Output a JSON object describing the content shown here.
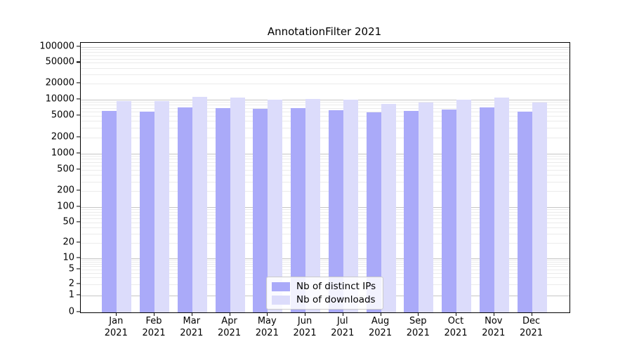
{
  "title": "AnnotationFilter 2021",
  "chart_data": {
    "type": "bar",
    "title": "AnnotationFilter 2021",
    "categories": [
      "Jan 2021",
      "Feb 2021",
      "Mar 2021",
      "Apr 2021",
      "May 2021",
      "Jun 2021",
      "Jul 2021",
      "Aug 2021",
      "Sep 2021",
      "Oct 2021",
      "Nov 2021",
      "Dec 2021"
    ],
    "x": {
      "months": [
        "Jan",
        "Feb",
        "Mar",
        "Apr",
        "May",
        "Jun",
        "Jul",
        "Aug",
        "Sep",
        "Oct",
        "Nov",
        "Dec"
      ],
      "year": "2021"
    },
    "series": [
      {
        "name": "Nb of distinct IPs",
        "color": "#aaaaf9",
        "values": [
          6100,
          5950,
          7200,
          7000,
          6700,
          6900,
          6300,
          5850,
          6100,
          6600,
          7200,
          5900
        ]
      },
      {
        "name": "Nb of downloads",
        "color": "#dcdcfb",
        "values": [
          9200,
          9300,
          11300,
          10700,
          9900,
          10100,
          9800,
          8300,
          8800,
          10000,
          10800,
          8700
        ]
      }
    ],
    "yscale": "symlog",
    "y_ticks": [
      0,
      1,
      2,
      5,
      10,
      20,
      50,
      100,
      200,
      500,
      1000,
      2000,
      5000,
      10000,
      20000,
      50000,
      100000
    ],
    "ylim": [
      0,
      100000
    ],
    "xlabel": "",
    "ylabel": "",
    "grid": true,
    "legend_position": "lower-center",
    "background_color": "#ffffff",
    "major_grid_color": "#c6c6c6",
    "minor_grid_color": "#ebebeb"
  }
}
